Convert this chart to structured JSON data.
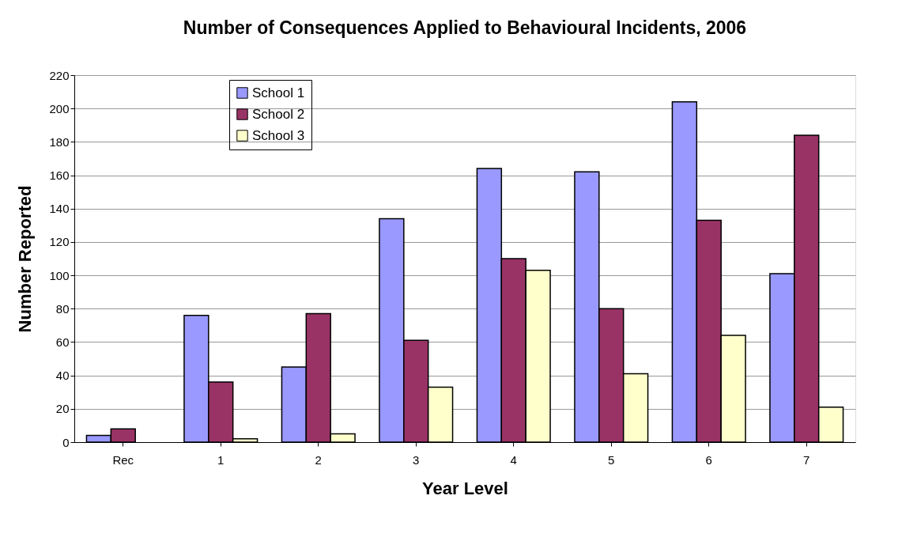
{
  "chart_data": {
    "type": "bar",
    "title": "Number of Consequences Applied to Behavioural Incidents, 2006",
    "xlabel": "Year Level",
    "ylabel": "Number Reported",
    "categories": [
      "Rec",
      "1",
      "2",
      "3",
      "4",
      "5",
      "6",
      "7"
    ],
    "series": [
      {
        "name": "School 1",
        "color": "#9999ff",
        "values": [
          4,
          76,
          45,
          134,
          164,
          162,
          204,
          101
        ]
      },
      {
        "name": "School 2",
        "color": "#993366",
        "values": [
          8,
          36,
          77,
          61,
          110,
          80,
          133,
          184
        ]
      },
      {
        "name": "School 3",
        "color": "#ffffcc",
        "values": [
          null,
          2,
          5,
          33,
          103,
          41,
          64,
          21
        ]
      }
    ],
    "ylim": [
      0,
      220
    ],
    "yticks": [
      0,
      20,
      40,
      60,
      80,
      100,
      120,
      140,
      160,
      180,
      200,
      220
    ],
    "grid": "y",
    "legend": "top left"
  }
}
